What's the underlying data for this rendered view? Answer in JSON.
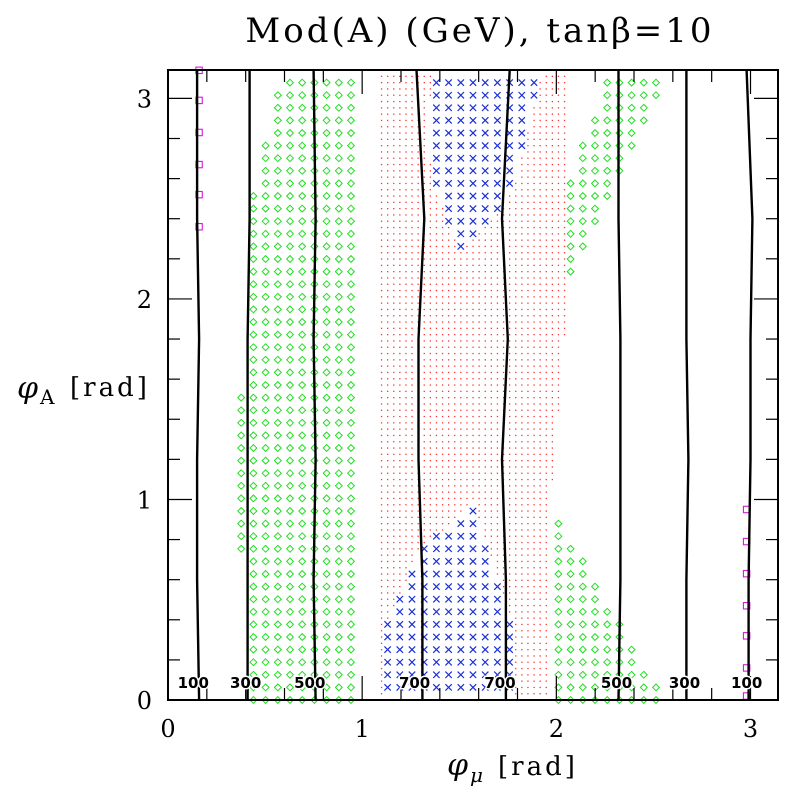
{
  "chart_data": {
    "type": "scatter",
    "title": "Mod(A) (GeV), tanβ=10",
    "xlabel": "φ",
    "xlabel_sub": "μ",
    "xlabel_unit": "[rad]",
    "ylabel": "φ",
    "ylabel_sub": "A",
    "ylabel_unit": "[rad]",
    "xlim": [
      0,
      3.1416
    ],
    "ylim": [
      0,
      3.1416
    ],
    "xticks": [
      "0",
      "1",
      "2",
      "3"
    ],
    "yticks": [
      "0",
      "1",
      "2",
      "3"
    ],
    "colors": {
      "green": "#22dd22",
      "blue": "#1a2fd6",
      "red": "#ff3333",
      "magenta": "#d61ad6",
      "contour": "#000000"
    },
    "series": [
      {
        "marker": "diamond",
        "color": "#22dd22",
        "regions": [
          {
            "poly": [
              [
                0.41,
                0
              ],
              [
                0.97,
                0
              ],
              [
                0.97,
                3.14
              ],
              [
                0.58,
                3.14
              ],
              [
                0.48,
                2.7
              ],
              [
                0.41,
                2.4
              ]
            ]
          },
          {
            "poly": [
              [
                0.36,
                0.75
              ],
              [
                0.45,
                0.75
              ],
              [
                0.45,
                1.55
              ],
              [
                0.36,
                1.55
              ]
            ]
          },
          {
            "poly": [
              [
                1.97,
                0
              ],
              [
                2.55,
                0
              ],
              [
                2.5,
                0.1
              ],
              [
                1.97,
                0.98
              ]
            ]
          },
          {
            "poly": [
              [
                2.07,
                2.12
              ],
              [
                2.58,
                3.14
              ],
              [
                2.27,
                3.14
              ],
              [
                2.07,
                2.6
              ]
            ]
          }
        ]
      },
      {
        "marker": "cross",
        "color": "#1a2fd6",
        "regions": [
          {
            "poly": [
              [
                1.13,
                0.03
              ],
              [
                1.78,
                0.03
              ],
              [
                1.78,
                0.38
              ],
              [
                1.57,
                0.98
              ],
              [
                1.3,
                0.75
              ],
              [
                1.13,
                0.4
              ]
            ]
          },
          {
            "poly": [
              [
                1.32,
                2.8
              ],
              [
                1.37,
                3.14
              ],
              [
                1.93,
                3.14
              ],
              [
                1.78,
                2.55
              ],
              [
                1.7,
                2.45
              ],
              [
                1.5,
                2.25
              ],
              [
                1.38,
                2.55
              ]
            ]
          }
        ]
      },
      {
        "marker": "dot",
        "color": "#ff3333",
        "regions": [
          {
            "poly": [
              [
                1.07,
                0
              ],
              [
                1.97,
                0
              ],
              [
                1.97,
                0.98
              ],
              [
                2.07,
                2.12
              ],
              [
                2.07,
                3.14
              ],
              [
                1.07,
                3.14
              ]
            ]
          }
        ]
      },
      {
        "marker": "square",
        "color": "#d61ad6",
        "points": [
          [
            0.16,
            3.14
          ],
          [
            0.16,
            2.99
          ],
          [
            0.16,
            2.83
          ],
          [
            0.16,
            2.67
          ],
          [
            0.16,
            2.52
          ],
          [
            0.16,
            2.36
          ],
          [
            2.98,
            0.95
          ],
          [
            2.98,
            0.79
          ],
          [
            2.98,
            0.63
          ],
          [
            2.98,
            0.47
          ],
          [
            2.98,
            0.32
          ],
          [
            2.98,
            0.16
          ],
          [
            2.98,
            0.02
          ]
        ]
      }
    ],
    "contours": [
      {
        "label": "100",
        "x": [
          0.16,
          0.15,
          0.15,
          0.16,
          0.15,
          0.15
        ]
      },
      {
        "label": "300",
        "x": [
          0.41,
          0.41,
          0.41,
          0.41,
          0.42,
          0.42
        ]
      },
      {
        "label": "500",
        "x": [
          0.76,
          0.75,
          0.76,
          0.75,
          0.76,
          0.75
        ]
      },
      {
        "label": "700",
        "x": [
          1.31,
          1.31,
          1.29,
          1.29,
          1.32,
          1.28
        ]
      },
      {
        "label": "700",
        "x": [
          1.74,
          1.74,
          1.72,
          1.75,
          1.72,
          1.76
        ]
      },
      {
        "label": "500",
        "x": [
          2.32,
          2.33,
          2.33,
          2.33,
          2.32,
          2.32
        ]
      },
      {
        "label": "300",
        "x": [
          2.67,
          2.67,
          2.68,
          2.67,
          2.67,
          2.67
        ]
      },
      {
        "label": "100",
        "x": [
          2.99,
          2.99,
          3.0,
          3.0,
          3.01,
          2.98
        ]
      }
    ],
    "contour_y": [
      0,
      0.6,
      1.2,
      1.8,
      2.4,
      3.1416
    ],
    "contour_labels": [
      "100",
      "300",
      "500",
      "700",
      "700",
      "500",
      "300",
      "100"
    ]
  }
}
